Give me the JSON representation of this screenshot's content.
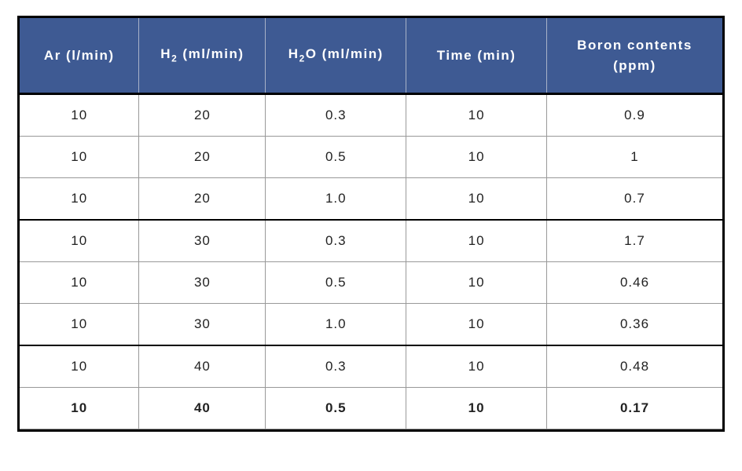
{
  "table": {
    "header_bg": "#3e5a93",
    "header_text_color": "#ffffff",
    "border_color_outer": "#000000",
    "border_color_inner": "#999999",
    "columns": [
      {
        "label_html": "Ar (l/min)",
        "width": "17%"
      },
      {
        "label_html": "H<sub>2</sub> (ml/min)",
        "width": "18%"
      },
      {
        "label_html": "H<sub>2</sub>O  (ml/min)",
        "width": "20%"
      },
      {
        "label_html": "Time (min)",
        "width": "20%"
      },
      {
        "label_html": "Boron contents<br>(ppm)",
        "width": "25%"
      }
    ],
    "rows": [
      {
        "cells": [
          "10",
          "20",
          "0.3",
          "10",
          "0.9"
        ],
        "group_end": false,
        "bold": false
      },
      {
        "cells": [
          "10",
          "20",
          "0.5",
          "10",
          "1"
        ],
        "group_end": false,
        "bold": false
      },
      {
        "cells": [
          "10",
          "20",
          "1.0",
          "10",
          "0.7"
        ],
        "group_end": true,
        "bold": false
      },
      {
        "cells": [
          "10",
          "30",
          "0.3",
          "10",
          "1.7"
        ],
        "group_end": false,
        "bold": false
      },
      {
        "cells": [
          "10",
          "30",
          "0.5",
          "10",
          "0.46"
        ],
        "group_end": false,
        "bold": false
      },
      {
        "cells": [
          "10",
          "30",
          "1.0",
          "10",
          "0.36"
        ],
        "group_end": true,
        "bold": false
      },
      {
        "cells": [
          "10",
          "40",
          "0.3",
          "10",
          "0.48"
        ],
        "group_end": false,
        "bold": false
      },
      {
        "cells": [
          "10",
          "40",
          "0.5",
          "10",
          "0.17"
        ],
        "group_end": false,
        "bold": true
      }
    ]
  }
}
